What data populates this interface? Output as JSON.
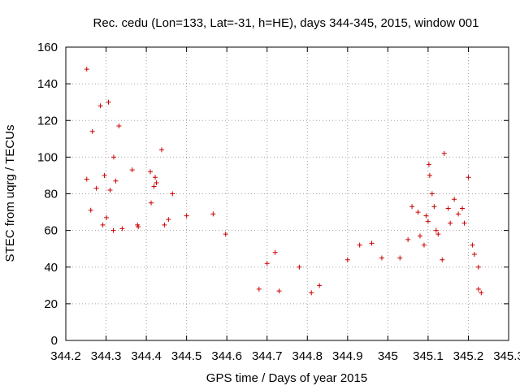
{
  "chart_data": {
    "type": "scatter",
    "title": "Rec. cedu (Lon=133, Lat=-31, h=HE), days 344-345, 2015, window 001",
    "xlabel": "GPS time / Days of year 2015",
    "ylabel": "STEC from uqrg / TECUs",
    "xlim": [
      344.2,
      345.3
    ],
    "ylim": [
      0,
      160
    ],
    "xticks": [
      "344.2",
      "344.3",
      "344.4",
      "344.5",
      "344.6",
      "344.7",
      "344.8",
      "344.9",
      "345",
      "345.1",
      "345.2",
      "345.3"
    ],
    "yticks": [
      "0",
      "20",
      "40",
      "60",
      "80",
      "100",
      "120",
      "140",
      "160"
    ],
    "grid": true,
    "marker": "+",
    "color": "#cc0000",
    "points": [
      [
        344.252,
        148
      ],
      [
        344.252,
        88
      ],
      [
        344.266,
        114
      ],
      [
        344.276,
        83
      ],
      [
        344.286,
        128
      ],
      [
        344.296,
        90
      ],
      [
        344.306,
        130
      ],
      [
        344.31,
        82
      ],
      [
        344.319,
        100
      ],
      [
        344.324,
        87
      ],
      [
        344.332,
        117
      ],
      [
        344.365,
        93
      ],
      [
        344.38,
        62
      ],
      [
        344.41,
        92
      ],
      [
        344.412,
        75
      ],
      [
        344.422,
        89
      ],
      [
        344.425,
        86
      ],
      [
        344.438,
        104
      ],
      [
        344.465,
        80
      ],
      [
        344.5,
        68
      ],
      [
        344.566,
        69
      ],
      [
        344.597,
        58
      ],
      [
        344.262,
        71
      ],
      [
        344.292,
        63
      ],
      [
        344.301,
        67
      ],
      [
        344.318,
        60
      ],
      [
        344.34,
        61
      ],
      [
        344.378,
        63
      ],
      [
        344.419,
        84
      ],
      [
        344.445,
        63
      ],
      [
        344.455,
        66
      ],
      [
        344.9,
        44
      ],
      [
        344.93,
        52
      ],
      [
        344.96,
        53
      ],
      [
        344.985,
        45
      ],
      [
        345.03,
        45
      ],
      [
        345.05,
        55
      ],
      [
        345.06,
        73
      ],
      [
        345.075,
        70
      ],
      [
        345.08,
        57
      ],
      [
        345.09,
        52
      ],
      [
        345.095,
        68
      ],
      [
        345.1,
        65
      ],
      [
        345.102,
        96
      ],
      [
        345.104,
        90
      ],
      [
        345.11,
        80
      ],
      [
        345.115,
        73
      ],
      [
        345.12,
        60
      ],
      [
        345.125,
        58
      ],
      [
        345.14,
        102
      ],
      [
        345.15,
        72
      ],
      [
        345.155,
        64
      ],
      [
        345.165,
        77
      ],
      [
        345.175,
        69
      ],
      [
        345.185,
        72
      ],
      [
        345.19,
        64
      ],
      [
        345.2,
        89
      ],
      [
        345.21,
        52
      ],
      [
        345.215,
        47
      ],
      [
        345.225,
        40
      ],
      [
        345.232,
        26
      ],
      [
        345.225,
        28
      ],
      [
        345.135,
        44
      ],
      [
        344.72,
        48
      ],
      [
        344.68,
        28
      ],
      [
        344.7,
        42
      ],
      [
        344.78,
        40
      ],
      [
        344.83,
        30
      ],
      [
        344.81,
        26
      ],
      [
        344.73,
        27
      ]
    ]
  }
}
